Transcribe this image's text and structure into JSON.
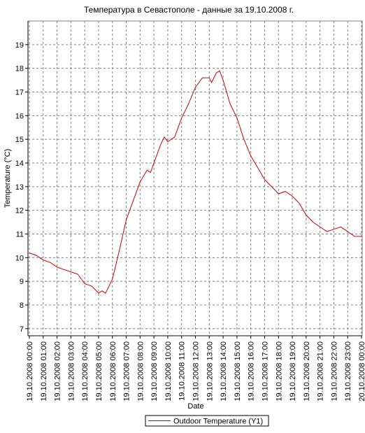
{
  "chart_data": {
    "type": "line",
    "title": "Температура в Севастополе - данные за 19.10.2008 г.",
    "x_label": "Date",
    "y_label": "Temperature (°C)",
    "x": [
      "19.10.2008 00:00",
      "19.10.2008 00:30",
      "19.10.2008 01:00",
      "19.10.2008 01:30",
      "19.10.2008 02:00",
      "19.10.2008 02:30",
      "19.10.2008 03:00",
      "19.10.2008 03:30",
      "19.10.2008 04:00",
      "19.10.2008 04:30",
      "19.10.2008 05:00",
      "19.10.2008 05:15",
      "19.10.2008 05:30",
      "19.10.2008 06:00",
      "19.10.2008 06:30",
      "19.10.2008 07:00",
      "19.10.2008 07:30",
      "19.10.2008 08:00",
      "19.10.2008 08:30",
      "19.10.2008 08:45",
      "19.10.2008 09:00",
      "19.10.2008 09:30",
      "19.10.2008 09:45",
      "19.10.2008 10:00",
      "19.10.2008 10:30",
      "19.10.2008 11:00",
      "19.10.2008 11:30",
      "19.10.2008 12:00",
      "19.10.2008 12:30",
      "19.10.2008 13:00",
      "19.10.2008 13:10",
      "19.10.2008 13:30",
      "19.10.2008 13:45",
      "19.10.2008 14:00",
      "19.10.2008 14:30",
      "19.10.2008 15:00",
      "19.10.2008 15:30",
      "19.10.2008 16:00",
      "19.10.2008 16:30",
      "19.10.2008 17:00",
      "19.10.2008 17:30",
      "19.10.2008 18:00",
      "19.10.2008 18:30",
      "19.10.2008 19:00",
      "19.10.2008 19:30",
      "19.10.2008 20:00",
      "19.10.2008 20:30",
      "19.10.2008 21:00",
      "19.10.2008 21:30",
      "19.10.2008 22:00",
      "19.10.2008 22:30",
      "19.10.2008 23:00",
      "19.10.2008 23:30",
      "20.10.2008 00:00"
    ],
    "series": [
      {
        "name": "Outdoor Temperature (Y1)",
        "color": "#d40000",
        "values": [
          10.2,
          10.1,
          9.9,
          9.8,
          9.6,
          9.5,
          9.4,
          9.3,
          8.9,
          8.8,
          8.5,
          8.6,
          8.5,
          9.1,
          10.3,
          11.6,
          12.4,
          13.2,
          13.7,
          13.6,
          14.0,
          14.8,
          15.1,
          14.9,
          15.1,
          15.9,
          16.5,
          17.2,
          17.6,
          17.6,
          17.4,
          17.8,
          17.9,
          17.5,
          16.5,
          15.9,
          15.0,
          14.3,
          13.8,
          13.3,
          13.0,
          12.7,
          12.8,
          12.6,
          12.3,
          11.8,
          11.5,
          11.3,
          11.1,
          11.2,
          11.3,
          11.1,
          10.9,
          10.9
        ]
      }
    ],
    "xlim": [
      "19.10.2008 00:00",
      "20.10.2008 00:00"
    ],
    "xticks": [
      "19.10.2008 00:00",
      "19.10.2008 01:00",
      "19.10.2008 02:00",
      "19.10.2008 03:00",
      "19.10.2008 04:00",
      "19.10.2008 05:00",
      "19.10.2008 06:00",
      "19.10.2008 07:00",
      "19.10.2008 08:00",
      "19.10.2008 09:00",
      "19.10.2008 10:00",
      "19.10.2008 11:00",
      "19.10.2008 12:00",
      "19.10.2008 13:00",
      "19.10.2008 14:00",
      "19.10.2008 15:00",
      "19.10.2008 16:00",
      "19.10.2008 17:00",
      "19.10.2008 18:00",
      "19.10.2008 19:00",
      "19.10.2008 20:00",
      "19.10.2008 21:00",
      "19.10.2008 22:00",
      "19.10.2008 23:00",
      "20.10.2008 00:00"
    ],
    "ylim": [
      6.7,
      20
    ],
    "yticks": [
      7,
      8,
      9,
      10,
      11,
      12,
      13,
      14,
      15,
      16,
      17,
      18,
      19
    ],
    "grid": true,
    "legend": "bottom"
  }
}
